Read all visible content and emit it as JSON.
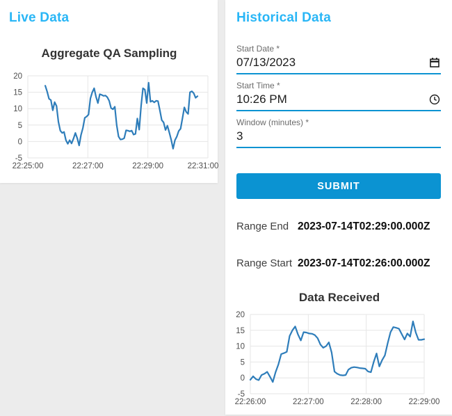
{
  "live_panel": {
    "heading": "Live Data"
  },
  "historical_panel": {
    "heading": "Historical Data",
    "form": {
      "start_date": {
        "label": "Start Date *",
        "value": "07/13/2023"
      },
      "start_time": {
        "label": "Start Time *",
        "value": "10:26 PM"
      },
      "window": {
        "label": "Window (minutes) *",
        "value": "3"
      },
      "submit_label": "SUBMIT"
    },
    "results": {
      "range_end_label": "Range End",
      "range_end_value": "2023-07-14T02:29:00.000Z",
      "range_start_label": "Range Start",
      "range_start_value": "2023-07-14T02:26:00.000Z"
    }
  },
  "colors": {
    "accent_heading": "#29b6f6",
    "button_blue": "#0b93d2",
    "chart_line": "#2e7dba",
    "gridline": "#e6e6e6"
  },
  "chart_data": [
    {
      "type": "line",
      "title": "Aggregate QA Sampling",
      "line_color": "#2e7dba",
      "ylim": [
        -5,
        20
      ],
      "y_ticks": [
        20,
        15,
        10,
        5,
        0,
        -5
      ],
      "x_tick_labels": [
        "22:25:00",
        "22:27:00",
        "22:29:00",
        "22:31:00"
      ],
      "grid": true,
      "legend": "none",
      "series_start_fraction": 0.097,
      "series_end_fraction": 0.942,
      "values": [
        17,
        15.2,
        13,
        12.6,
        9.5,
        12,
        10.8,
        6,
        3.3,
        2.6,
        2.9,
        0.4,
        -0.7,
        0.4,
        -0.6,
        0.9,
        2.6,
        1,
        -1.2,
        2,
        4.1,
        7.2,
        7.6,
        8.2,
        13.1,
        15,
        16.2,
        13.6,
        11.7,
        14.4,
        14.2,
        13.9,
        14,
        13.5,
        12.4,
        10.2,
        9.8,
        10.6,
        5,
        1.5,
        0.6,
        0.7,
        1,
        3.4,
        3.3,
        3.1,
        3.3,
        2.1,
        2.3,
        7,
        3.6,
        10.8,
        16.2,
        15.8,
        11.7,
        17.9,
        12.1,
        12.4,
        11.9,
        12.4,
        12.3,
        9.5,
        6.5,
        5.8,
        3.5,
        4.8,
        2.8,
        0.5,
        -2.2,
        0.4,
        1.5,
        3.2,
        3.9,
        7.1,
        10.4,
        9,
        8.4,
        15,
        15.3,
        14.7,
        13.3,
        13.8
      ]
    },
    {
      "type": "line",
      "title": "Data Received",
      "line_color": "#2e7dba",
      "ylim": [
        -5,
        20
      ],
      "y_ticks": [
        20,
        15,
        10,
        5,
        0,
        -5
      ],
      "x_tick_labels": [
        "22:26:00",
        "22:27:00",
        "22:28:00",
        "22:29:00"
      ],
      "grid": true,
      "legend": "none",
      "series_start_fraction": 0.0,
      "series_end_fraction": 1.0,
      "values": [
        -0.6,
        0.5,
        -0.4,
        -0.7,
        0.9,
        1.3,
        1.9,
        0.4,
        -1.3,
        1.8,
        4.2,
        7.5,
        7.8,
        8.2,
        13.2,
        15,
        16.2,
        13.7,
        11.8,
        14.4,
        14.3,
        14,
        13.9,
        13.5,
        12.5,
        10.5,
        9.5,
        10,
        11.2,
        8,
        2,
        1.3,
        0.9,
        0.8,
        0.9,
        2.6,
        3.2,
        3.4,
        3.3,
        3.1,
        3,
        2.9,
        2,
        1.8,
        5,
        7.7,
        3.6,
        5.6,
        7.1,
        11,
        14.4,
        16,
        15.8,
        15.5,
        13.8,
        12.1,
        14,
        13,
        17.8,
        14.3,
        12,
        12,
        12.2
      ]
    }
  ]
}
